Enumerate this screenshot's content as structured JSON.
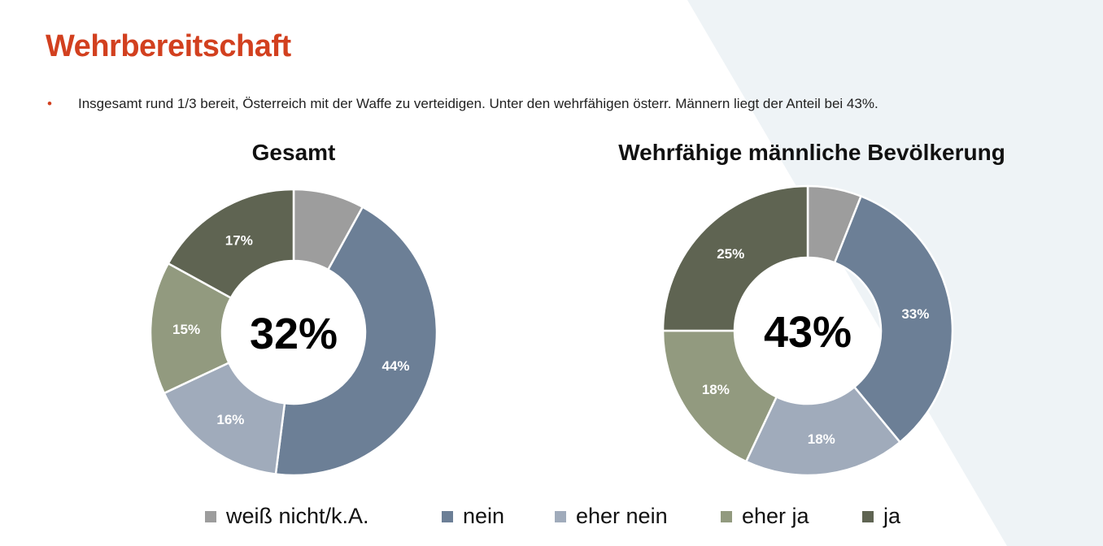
{
  "title": "Wehrbereitschaft",
  "bullet": "Insgesamt rund 1/3 bereit, Österreich mit der Waffe zu verteidigen. Unter den wehrfähigen österr. Männern liegt der Anteil bei 43%.",
  "colors": {
    "title": "#d2401f",
    "background_accent": "#eef3f6"
  },
  "chart_data": [
    {
      "type": "pie",
      "donut": true,
      "title": "Gesamt",
      "center_label": "32%",
      "categories": [
        "weiß nicht/k.A.",
        "nein",
        "eher nein",
        "eher ja",
        "ja"
      ],
      "values": [
        8,
        44,
        16,
        15,
        17
      ],
      "labels": [
        "",
        "44%",
        "16%",
        "15%",
        "17%"
      ],
      "colors": [
        "#9d9d9d",
        "#6c7f96",
        "#a0abbb",
        "#929a7f",
        "#5f6452"
      ]
    },
    {
      "type": "pie",
      "donut": true,
      "title": "Wehrfähige männliche Bevölkerung",
      "center_label": "43%",
      "categories": [
        "weiß nicht/k.A.",
        "nein",
        "eher nein",
        "eher ja",
        "ja"
      ],
      "values": [
        6,
        33,
        18,
        18,
        25
      ],
      "labels": [
        "",
        "33%",
        "18%",
        "18%",
        "25%"
      ],
      "colors": [
        "#9d9d9d",
        "#6c7f96",
        "#a0abbb",
        "#929a7f",
        "#5f6452"
      ]
    }
  ],
  "legend": {
    "placement": "bottom",
    "items": [
      {
        "label": "weiß nicht/k.A.",
        "color": "#9d9d9d"
      },
      {
        "label": "nein",
        "color": "#6c7f96"
      },
      {
        "label": "eher nein",
        "color": "#a0abbb"
      },
      {
        "label": "eher ja",
        "color": "#929a7f"
      },
      {
        "label": "ja",
        "color": "#5f6452"
      }
    ]
  }
}
